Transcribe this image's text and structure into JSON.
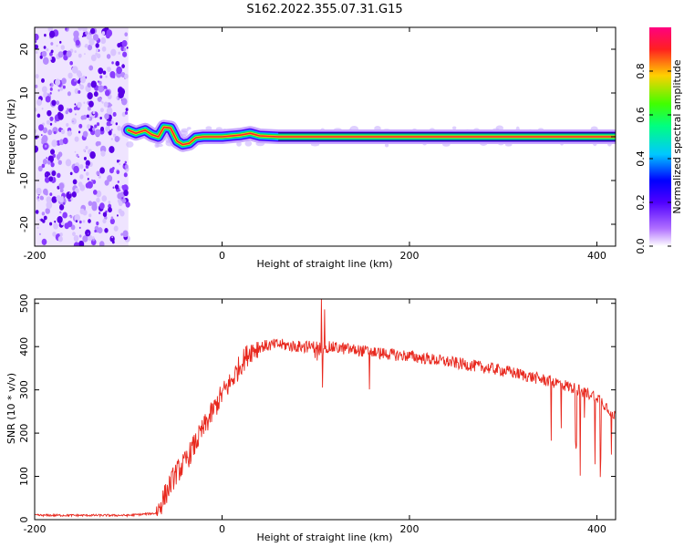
{
  "title": "S162.2022.355.07.31.G15",
  "chart_data": [
    {
      "type": "heatmap",
      "xlabel": "Height of straight line (km)",
      "ylabel": "Frequency (Hz)",
      "xlim": [
        -200,
        420
      ],
      "ylim": [
        -25,
        25
      ],
      "xticks": [
        -200,
        0,
        200,
        400
      ],
      "yticks": [
        -20,
        -10,
        0,
        10,
        20
      ],
      "colorbar": {
        "label": "Normalized spectral amplitude",
        "range": [
          0,
          1
        ],
        "ticks": [
          "0.0",
          "0.2",
          "0.4",
          "0.6",
          "0.8"
        ],
        "colormap": [
          "#ffffff",
          "#8000ff",
          "#0000ff",
          "#00c8ff",
          "#00ff80",
          "#40ff00",
          "#ffd000",
          "#ff2020",
          "#ff0080"
        ]
      },
      "noise_region_x": [
        -200,
        -100
      ],
      "ridge": [
        {
          "x": -100,
          "f": 1.5
        },
        {
          "x": -92,
          "f": 0.8
        },
        {
          "x": -82,
          "f": 1.5
        },
        {
          "x": -75,
          "f": 0.5
        },
        {
          "x": -68,
          "f": 0
        },
        {
          "x": -62,
          "f": 2.2
        },
        {
          "x": -55,
          "f": 2
        },
        {
          "x": -48,
          "f": -1
        },
        {
          "x": -42,
          "f": -1.8
        },
        {
          "x": -35,
          "f": -1.5
        },
        {
          "x": -28,
          "f": -0.2
        },
        {
          "x": -20,
          "f": 0
        },
        {
          "x": 0,
          "f": 0
        },
        {
          "x": 20,
          "f": 0.4
        },
        {
          "x": 30,
          "f": 0.8
        },
        {
          "x": 40,
          "f": 0.2
        },
        {
          "x": 60,
          "f": 0
        },
        {
          "x": 420,
          "f": 0
        }
      ]
    },
    {
      "type": "line",
      "xlabel": "Height of straight line (km)",
      "ylabel": "SNR (10 * v/v)",
      "xlim": [
        -200,
        420
      ],
      "ylim": [
        0,
        510
      ],
      "xticks": [
        -200,
        0,
        200,
        400
      ],
      "yticks": [
        0,
        100,
        200,
        300,
        400,
        500
      ],
      "line_color": "#e8281e",
      "series": [
        {
          "x": [
            -200,
            -150,
            -100,
            -70,
            -60,
            -50,
            -40,
            -30,
            -20,
            -10,
            0,
            10,
            20,
            30,
            40,
            60,
            80,
            100,
            120,
            150,
            180,
            200,
            250,
            300,
            330,
            360,
            380,
            400,
            420
          ],
          "values": [
            10,
            10,
            10,
            15,
            60,
            105,
            130,
            170,
            210,
            250,
            290,
            320,
            360,
            390,
            400,
            405,
            400,
            400,
            398,
            390,
            382,
            378,
            362,
            345,
            330,
            315,
            300,
            285,
            240
          ]
        }
      ]
    }
  ]
}
